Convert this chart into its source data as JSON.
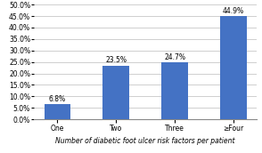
{
  "categories": [
    "One",
    "Two",
    "Three",
    "≥Four"
  ],
  "values": [
    6.8,
    23.5,
    24.7,
    44.9
  ],
  "bar_color": "#4472C4",
  "xlabel": "Number of diabetic foot ulcer risk factors per patient",
  "ylim": [
    0,
    50
  ],
  "yticks": [
    0,
    5,
    10,
    15,
    20,
    25,
    30,
    35,
    40,
    45,
    50
  ],
  "bar_labels": [
    "6.8%",
    "23.5%",
    "24.7%",
    "44.9%"
  ],
  "background_color": "#ffffff",
  "grid_color": "#c8c8c8",
  "xlabel_fontsize": 5.5,
  "tick_fontsize": 5.5,
  "label_fontsize": 5.5,
  "bar_width": 0.45
}
